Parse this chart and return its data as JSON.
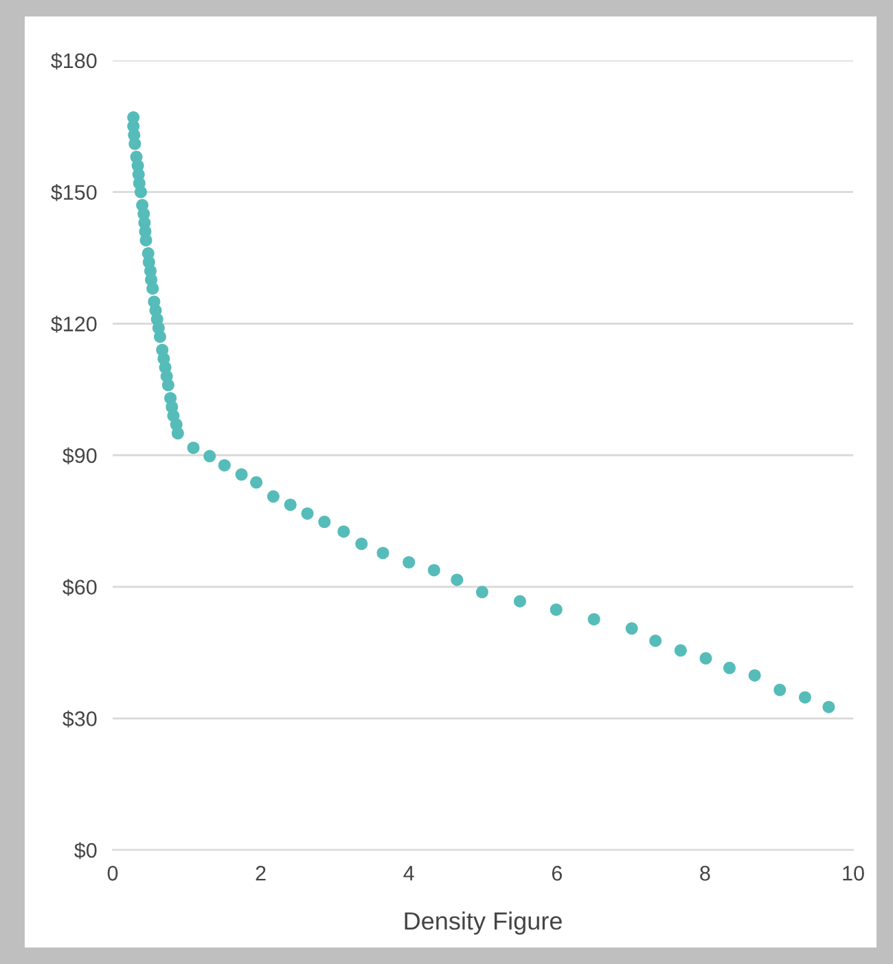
{
  "chart_data": {
    "type": "scatter",
    "xlabel": "Density Figure",
    "series": [
      {
        "color": "#56bcb9",
        "x": [
          0.28,
          0.28,
          0.29,
          0.3,
          0.32,
          0.34,
          0.35,
          0.36,
          0.38,
          0.4,
          0.42,
          0.43,
          0.44,
          0.45,
          0.48,
          0.49,
          0.51,
          0.52,
          0.54,
          0.56,
          0.58,
          0.6,
          0.62,
          0.64,
          0.67,
          0.69,
          0.71,
          0.73,
          0.75,
          0.78,
          0.8,
          0.82,
          0.86,
          0.88,
          1.09,
          1.31,
          1.51,
          1.74,
          1.94,
          2.17,
          2.4,
          2.63,
          2.86,
          3.12,
          3.36,
          3.65,
          4.0,
          4.34,
          4.65,
          4.99,
          5.5,
          5.99,
          6.5,
          7.01,
          7.33,
          7.67,
          8.01,
          8.33,
          8.67,
          9.01,
          9.35,
          9.67
        ],
        "values": [
          167,
          165,
          163,
          161,
          158,
          156,
          154,
          152,
          150,
          147,
          145,
          143,
          141,
          139,
          136,
          134,
          132,
          130,
          128,
          125,
          123,
          121,
          119,
          117,
          114,
          112,
          110,
          108,
          106,
          103,
          101,
          99,
          97,
          95,
          91.7,
          89.8,
          87.7,
          85.6,
          83.8,
          80.6,
          78.7,
          76.7,
          74.8,
          72.6,
          69.8,
          67.7,
          65.6,
          63.8,
          61.6,
          58.8,
          56.7,
          54.8,
          52.6,
          50.5,
          47.7,
          45.5,
          43.7,
          41.5,
          39.8,
          36.5,
          34.8,
          32.6
        ]
      }
    ],
    "xlim": [
      0,
      10
    ],
    "xticks": [
      0,
      2,
      4,
      6,
      8,
      10
    ],
    "ylim": [
      0,
      180
    ],
    "yticks": [
      {
        "value": 0,
        "label": "$0"
      },
      {
        "value": 30,
        "label": "$30"
      },
      {
        "value": 60,
        "label": "$60"
      },
      {
        "value": 90,
        "label": "$90"
      },
      {
        "value": 120,
        "label": "$120"
      },
      {
        "value": 150,
        "label": "$150"
      },
      {
        "value": 180,
        "label": "$180"
      }
    ],
    "grid": "y",
    "marker": "circle"
  }
}
